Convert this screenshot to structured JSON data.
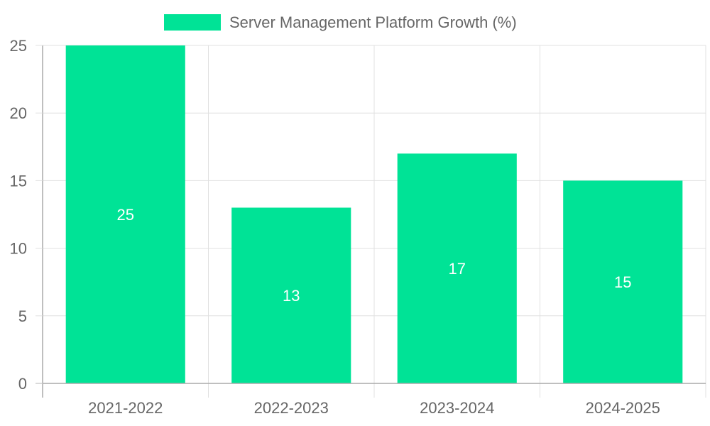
{
  "chart_data": {
    "type": "bar",
    "categories": [
      "2021-2022",
      "2022-2023",
      "2023-2024",
      "2024-2025"
    ],
    "series": [
      {
        "name": "Server Management Platform Growth (%)",
        "values": [
          25,
          13,
          17,
          15
        ],
        "color": "#00e396"
      }
    ],
    "data_labels": [
      "25",
      "13",
      "17",
      "15"
    ],
    "ylim": [
      0,
      25
    ],
    "y_ticks": [
      0,
      5,
      10,
      15,
      20,
      25
    ],
    "grid": true,
    "legend_position": "top"
  },
  "colors": {
    "bar": "#00e396",
    "grid": "#e0e0e0",
    "axis": "#aaaaaa",
    "tick_text": "#666666",
    "data_label_text": "#ffffff"
  }
}
